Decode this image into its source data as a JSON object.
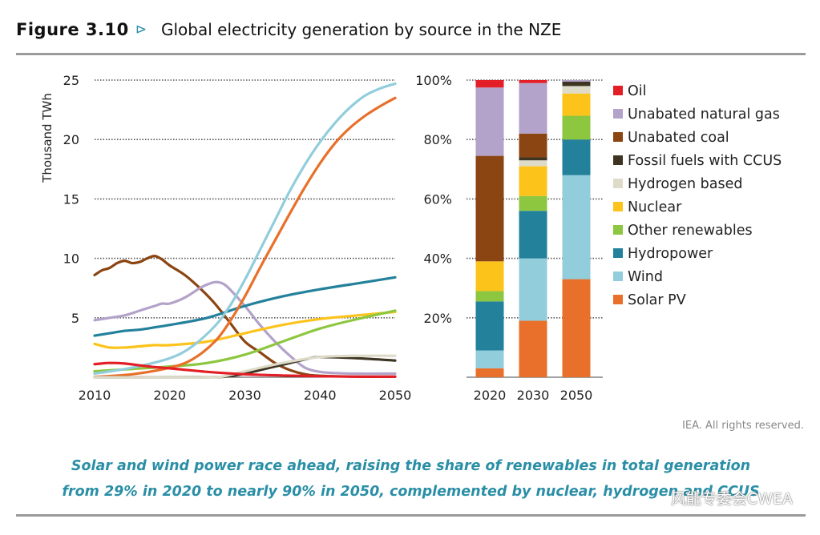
{
  "figure": {
    "label": "Figure 3.10",
    "arrow": "⊳",
    "title": "Global electricity generation by source in the NZE",
    "rights": "IEA. All rights reserved.",
    "caption_line1": "Solar and wind power race ahead, raising the share of renewables in total generation",
    "caption_line2": "from 29% in 2020 to nearly 90% in 2050, complemented by nuclear, hydrogen and CCUS",
    "watermark": "风能专委会CWEA"
  },
  "colors": {
    "Oil": "#e41e26",
    "Unabated natural gas": "#b3a2c9",
    "Unabated coal": "#8b4513",
    "Fossil fuels with CCUS": "#3d3422",
    "Hydrogen based": "#dedbc9",
    "Nuclear": "#fcc31b",
    "Other renewables": "#8dc63f",
    "Hydropower": "#23819c",
    "Wind": "#92cddc",
    "Solar PV": "#e8702a"
  },
  "chart_data": [
    {
      "type": "line",
      "ylabel": "Thousand TWh",
      "xlabel": "",
      "xlim": [
        2010,
        2050
      ],
      "ylim": [
        0,
        25
      ],
      "xticks": [
        "2010",
        "2020",
        "2030",
        "2040",
        "2050"
      ],
      "yticks": [
        "5",
        "10",
        "15",
        "20",
        "25"
      ],
      "grid": true,
      "series": [
        {
          "name": "Unabated coal",
          "x": [
            2010,
            2011,
            2012,
            2013,
            2014,
            2015,
            2016,
            2017,
            2018,
            2019,
            2020,
            2022,
            2024,
            2026,
            2028,
            2030,
            2032,
            2034,
            2036,
            2038,
            2040,
            2045,
            2050
          ],
          "values": [
            8.6,
            9.0,
            9.2,
            9.6,
            9.8,
            9.6,
            9.7,
            10.0,
            10.2,
            9.9,
            9.4,
            8.6,
            7.5,
            6.2,
            4.6,
            3.0,
            2.1,
            1.2,
            0.6,
            0.25,
            0.12,
            0.05,
            0.05
          ]
        },
        {
          "name": "Unabated natural gas",
          "x": [
            2010,
            2012,
            2014,
            2016,
            2018,
            2019,
            2020,
            2022,
            2024,
            2025,
            2026,
            2027,
            2028,
            2030,
            2032,
            2034,
            2036,
            2038,
            2040,
            2042,
            2045,
            2050
          ],
          "values": [
            4.8,
            5.0,
            5.2,
            5.6,
            6.0,
            6.2,
            6.2,
            6.7,
            7.5,
            7.8,
            8.0,
            7.9,
            7.4,
            6.0,
            4.4,
            3.0,
            1.8,
            0.8,
            0.45,
            0.35,
            0.3,
            0.3
          ]
        },
        {
          "name": "Hydropower",
          "x": [
            2010,
            2012,
            2014,
            2016,
            2018,
            2020,
            2025,
            2030,
            2035,
            2040,
            2045,
            2050
          ],
          "values": [
            3.5,
            3.7,
            3.9,
            4.0,
            4.2,
            4.4,
            5.0,
            6.0,
            6.8,
            7.4,
            7.9,
            8.4
          ]
        },
        {
          "name": "Nuclear",
          "x": [
            2010,
            2012,
            2014,
            2016,
            2018,
            2020,
            2025,
            2030,
            2035,
            2040,
            2045,
            2050
          ],
          "values": [
            2.8,
            2.5,
            2.5,
            2.6,
            2.7,
            2.7,
            3.0,
            3.7,
            4.4,
            4.9,
            5.2,
            5.5
          ]
        },
        {
          "name": "Other renewables",
          "x": [
            2010,
            2015,
            2020,
            2025,
            2030,
            2035,
            2040,
            2045,
            2050
          ],
          "values": [
            0.5,
            0.7,
            0.9,
            1.2,
            1.9,
            3.0,
            4.1,
            4.9,
            5.6
          ]
        },
        {
          "name": "Solar PV",
          "x": [
            2010,
            2015,
            2020,
            2023,
            2026,
            2028,
            2030,
            2032,
            2034,
            2036,
            2038,
            2040,
            2042,
            2044,
            2046,
            2048,
            2050
          ],
          "values": [
            0.03,
            0.25,
            0.8,
            1.5,
            3.0,
            4.7,
            6.8,
            9.2,
            11.5,
            13.8,
            16.0,
            18.0,
            19.7,
            21.0,
            22.0,
            22.8,
            23.5
          ]
        },
        {
          "name": "Wind",
          "x": [
            2010,
            2015,
            2020,
            2023,
            2026,
            2028,
            2030,
            2032,
            2034,
            2036,
            2038,
            2040,
            2042,
            2044,
            2046,
            2048,
            2050
          ],
          "values": [
            0.3,
            0.8,
            1.6,
            2.6,
            4.3,
            6.0,
            8.2,
            10.7,
            13.2,
            15.7,
            17.9,
            19.8,
            21.4,
            22.7,
            23.7,
            24.3,
            24.7
          ]
        },
        {
          "name": "Fossil fuels with CCUS",
          "x": [
            2010,
            2025,
            2028,
            2030,
            2032,
            2034,
            2036,
            2038,
            2040,
            2045,
            2050
          ],
          "values": [
            0,
            0,
            0.1,
            0.3,
            0.6,
            0.9,
            1.2,
            1.5,
            1.7,
            1.6,
            1.4
          ]
        },
        {
          "name": "Hydrogen based",
          "x": [
            2010,
            2025,
            2028,
            2030,
            2035,
            2040,
            2045,
            2050
          ],
          "values": [
            0,
            0,
            0.2,
            0.5,
            1.2,
            1.7,
            1.8,
            1.8
          ]
        },
        {
          "name": "Oil",
          "x": [
            2010,
            2012,
            2014,
            2016,
            2018,
            2020,
            2025,
            2030,
            2035,
            2040,
            2045,
            2050
          ],
          "values": [
            1.1,
            1.2,
            1.15,
            1.0,
            0.85,
            0.75,
            0.45,
            0.25,
            0.15,
            0.08,
            0.05,
            0.05
          ]
        }
      ]
    },
    {
      "type": "bar",
      "stacked": true,
      "normalized": true,
      "categories": [
        "2020",
        "2030",
        "2050"
      ],
      "ylim": [
        0,
        100
      ],
      "yticks": [
        "20%",
        "40%",
        "60%",
        "80%",
        "100%"
      ],
      "grid": true,
      "legend_position": "right",
      "series": [
        {
          "name": "Solar PV",
          "values": [
            3,
            19,
            33
          ]
        },
        {
          "name": "Wind",
          "values": [
            6,
            21,
            35
          ]
        },
        {
          "name": "Hydropower",
          "values": [
            16.5,
            16,
            12
          ]
        },
        {
          "name": "Other renewables",
          "values": [
            3.5,
            5,
            8
          ]
        },
        {
          "name": "Nuclear",
          "values": [
            10,
            10,
            7.5
          ]
        },
        {
          "name": "Hydrogen based",
          "values": [
            0,
            2,
            2.5
          ]
        },
        {
          "name": "Fossil fuels with CCUS",
          "values": [
            0,
            1,
            1.5
          ]
        },
        {
          "name": "Unabated coal",
          "values": [
            35.5,
            8,
            0
          ]
        },
        {
          "name": "Unabated natural gas",
          "values": [
            23,
            17,
            0.5
          ]
        },
        {
          "name": "Oil",
          "values": [
            2.5,
            1,
            0
          ]
        }
      ],
      "legend": [
        "Oil",
        "Unabated natural gas",
        "Unabated coal",
        "Fossil fuels with CCUS",
        "Hydrogen based",
        "Nuclear",
        "Other renewables",
        "Hydropower",
        "Wind",
        "Solar PV"
      ]
    }
  ]
}
